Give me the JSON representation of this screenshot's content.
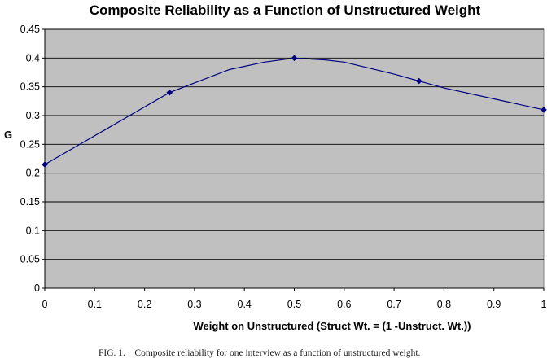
{
  "chart_data": {
    "type": "line",
    "title": "Composite Reliability as a Function of Unstructured Weight",
    "xlabel": "Weight on Unstructured (Struct Wt. = (1 -Unstruct. Wt.))",
    "ylabel": "G",
    "xlim": [
      0,
      1
    ],
    "ylim": [
      0,
      0.45
    ],
    "x_ticks": [
      "0",
      "0.1",
      "0.2",
      "0.3",
      "0.4",
      "0.5",
      "0.6",
      "0.7",
      "0.8",
      "0.9",
      "1"
    ],
    "y_ticks": [
      "0",
      "0.05",
      "0.1",
      "0.15",
      "0.2",
      "0.25",
      "0.3",
      "0.35",
      "0.4",
      "0.45"
    ],
    "grid": "horizontal",
    "legend": "none",
    "series": [
      {
        "x": [
          0,
          0.06,
          0.12,
          0.19,
          0.25,
          0.31,
          0.37,
          0.44,
          0.5,
          0.56,
          0.6,
          0.7,
          0.75,
          0.8,
          0.9,
          1.0
        ],
        "values": [
          0.215,
          0.245,
          0.275,
          0.31,
          0.34,
          0.36,
          0.38,
          0.393,
          0.4,
          0.397,
          0.393,
          0.372,
          0.36,
          0.348,
          0.329,
          0.31
        ],
        "markers_x": [
          0,
          0.25,
          0.5,
          0.75,
          1.0
        ],
        "markers_y": [
          0.215,
          0.34,
          0.4,
          0.36,
          0.31
        ]
      }
    ],
    "colors": {
      "plot_background": "#c0c0c0",
      "line": "#000080",
      "gridline": "#000000"
    }
  },
  "caption": "FIG. 1.    Composite reliability for one interview as a function of unstructured weight."
}
